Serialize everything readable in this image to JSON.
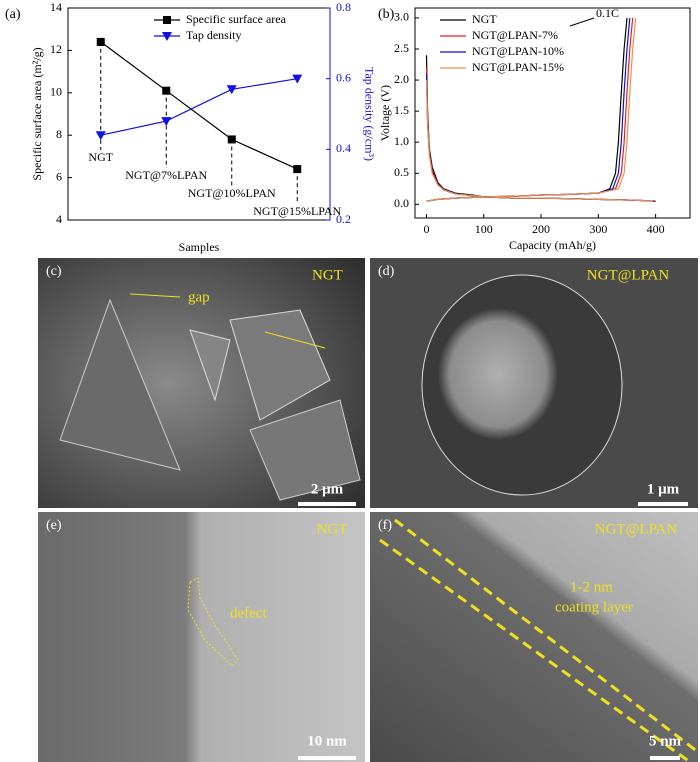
{
  "chart_data": [
    {
      "type": "line",
      "panel_label": "(a)",
      "xlabel": "Samples",
      "ylabel": "Specific surface area (m²/g)",
      "y2label": "Tap density (g/cm³)",
      "categories": [
        "NGT",
        "NGT@7%LPAN",
        "NGT@10%LPAN",
        "NGT@15%LPAN"
      ],
      "series": [
        {
          "name": "Specific surface area",
          "color": "#000000",
          "marker": "square",
          "values": [
            12.4,
            10.1,
            7.8,
            6.4
          ]
        },
        {
          "name": "Tap density",
          "color": "#1010e0",
          "marker": "triangle-down",
          "axis": "y2",
          "values": [
            0.44,
            0.48,
            0.57,
            0.6
          ]
        }
      ],
      "ylim": [
        4,
        14
      ],
      "yticks": [
        4,
        6,
        8,
        10,
        12,
        14
      ],
      "y2lim": [
        0.2,
        0.8
      ],
      "y2ticks": [
        0.2,
        0.4,
        0.6,
        0.8
      ],
      "legend": "upper center"
    },
    {
      "type": "line",
      "panel_label": "(b)",
      "xlabel": "Capacity (mAh/g)",
      "ylabel": "Voltage (V)",
      "annotation": "0.1C",
      "series": [
        {
          "name": "NGT",
          "color": "#000000",
          "x": [
            0,
            2,
            5,
            10,
            20,
            30,
            50,
            80,
            100,
            150,
            200,
            250,
            300,
            350,
            380,
            400,
            null,
            0,
            20,
            50,
            100,
            150,
            200,
            250,
            300,
            320,
            330,
            335,
            340,
            345,
            350
          ],
          "values": [
            2.4,
            1.5,
            0.9,
            0.6,
            0.35,
            0.25,
            0.18,
            0.15,
            0.12,
            0.1,
            0.1,
            0.09,
            0.08,
            0.07,
            0.06,
            0.05,
            null,
            0.05,
            0.08,
            0.1,
            0.12,
            0.13,
            0.15,
            0.16,
            0.18,
            0.25,
            0.5,
            1.0,
            1.8,
            2.5,
            3.0
          ]
        },
        {
          "name": "NGT@LPAN-7%",
          "color": "#e02020",
          "x": [
            0,
            2,
            5,
            10,
            20,
            30,
            50,
            80,
            100,
            150,
            200,
            250,
            300,
            350,
            380,
            395,
            null,
            0,
            20,
            50,
            100,
            150,
            200,
            250,
            300,
            330,
            340,
            345,
            350,
            355,
            360
          ],
          "values": [
            2.2,
            1.4,
            0.85,
            0.55,
            0.33,
            0.24,
            0.17,
            0.14,
            0.12,
            0.1,
            0.1,
            0.09,
            0.08,
            0.07,
            0.06,
            0.05,
            null,
            0.05,
            0.08,
            0.1,
            0.12,
            0.13,
            0.15,
            0.16,
            0.18,
            0.25,
            0.5,
            1.0,
            1.8,
            2.5,
            3.0
          ]
        },
        {
          "name": "NGT@LPAN-10%",
          "color": "#1010c0",
          "x": [
            0,
            2,
            5,
            10,
            20,
            30,
            50,
            80,
            100,
            150,
            200,
            250,
            300,
            350,
            380,
            395,
            null,
            0,
            20,
            50,
            100,
            150,
            200,
            250,
            300,
            325,
            335,
            340,
            345,
            350,
            355
          ],
          "values": [
            2.1,
            1.3,
            0.8,
            0.52,
            0.32,
            0.23,
            0.17,
            0.14,
            0.12,
            0.1,
            0.1,
            0.09,
            0.08,
            0.07,
            0.06,
            0.05,
            null,
            0.05,
            0.08,
            0.1,
            0.12,
            0.13,
            0.15,
            0.16,
            0.18,
            0.25,
            0.5,
            1.0,
            1.8,
            2.5,
            3.0
          ]
        },
        {
          "name": "NGT@LPAN-15%",
          "color": "#e89050",
          "x": [
            0,
            2,
            5,
            10,
            20,
            30,
            50,
            80,
            100,
            150,
            200,
            250,
            300,
            350,
            380,
            395,
            null,
            0,
            20,
            50,
            100,
            150,
            200,
            250,
            300,
            335,
            345,
            350,
            355,
            360,
            365
          ],
          "values": [
            2.0,
            1.3,
            0.8,
            0.5,
            0.31,
            0.23,
            0.17,
            0.14,
            0.12,
            0.1,
            0.1,
            0.09,
            0.08,
            0.07,
            0.06,
            0.05,
            null,
            0.05,
            0.08,
            0.1,
            0.12,
            0.13,
            0.15,
            0.16,
            0.18,
            0.25,
            0.5,
            1.0,
            1.8,
            2.5,
            3.0
          ]
        }
      ],
      "xlim": [
        -20,
        460
      ],
      "xticks": [
        0,
        100,
        200,
        300,
        400
      ],
      "ylim": [
        -0.22,
        3.16
      ],
      "yticks": [
        {
          "value": 0,
          "label": "0.0"
        },
        0.5,
        {
          "value": 1,
          "label": "1.0"
        },
        1.5,
        {
          "value": 2,
          "label": "2.0"
        },
        2.5,
        {
          "value": 3,
          "label": "3.0"
        }
      ],
      "legend": "upper left"
    }
  ],
  "panels": [
    {
      "label": "(c)",
      "title": "NGT",
      "note": "gap",
      "scale_bar": "2 μm"
    },
    {
      "label": "(d)",
      "title": "NGT@LPAN",
      "scale_bar": "1 μm"
    },
    {
      "label": "(e)",
      "title": "NGT",
      "note": "defect",
      "scale_bar": "10 nm"
    },
    {
      "label": "(f)",
      "title": "NGT@LPAN",
      "note": "1-2 nm",
      "note2": "coating layer",
      "scale_bar": "5 nm"
    }
  ]
}
